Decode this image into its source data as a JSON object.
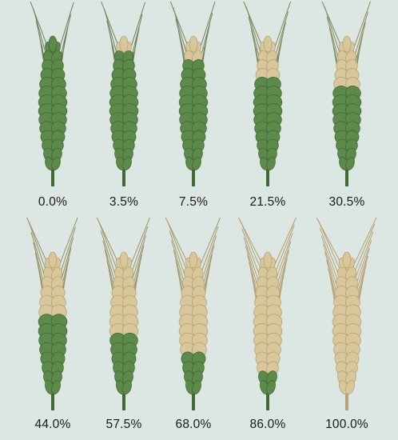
{
  "background": "#dce6e2",
  "rows": [
    {
      "panels": [
        {
          "label": "0.0%",
          "severity": 0.0
        },
        {
          "label": "3.5%",
          "severity": 0.035
        },
        {
          "label": "7.5%",
          "severity": 0.075
        },
        {
          "label": "21.5%",
          "severity": 0.215
        },
        {
          "label": "30.5%",
          "severity": 0.305
        }
      ]
    },
    {
      "panels": [
        {
          "label": "44.0%",
          "severity": 0.44
        },
        {
          "label": "57.5%",
          "severity": 0.575
        },
        {
          "label": "68.0%",
          "severity": 0.68
        },
        {
          "label": "86.0%",
          "severity": 0.86
        },
        {
          "label": "100.0%",
          "severity": 1.0
        }
      ]
    }
  ],
  "colors": {
    "healthy": "#5d8a4a",
    "healthy_dark": "#3f6a36",
    "diseased": "#d8c79a",
    "diseased_dark": "#b8a274",
    "awn": "#6f7f55",
    "label": "#1a1a1a"
  }
}
